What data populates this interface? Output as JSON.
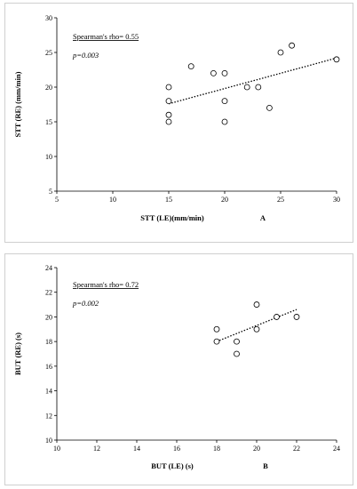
{
  "chart_data": [
    {
      "type": "scatter",
      "panel_letter": "A",
      "xlabel": "STT (LE)(mm/min)",
      "ylabel": "STT (RE) (mm/min)",
      "xlim": [
        5,
        30
      ],
      "ylim": [
        5,
        30
      ],
      "xticks": [
        5,
        10,
        15,
        20,
        25,
        30
      ],
      "yticks": [
        5,
        10,
        15,
        20,
        25,
        30
      ],
      "annotation_rho": "Spearman's rho= 0.55",
      "annotation_p": "p=0.003",
      "points": [
        {
          "x": 15,
          "y": 15
        },
        {
          "x": 15,
          "y": 16
        },
        {
          "x": 15,
          "y": 18
        },
        {
          "x": 15,
          "y": 20
        },
        {
          "x": 17,
          "y": 23
        },
        {
          "x": 19,
          "y": 22
        },
        {
          "x": 20,
          "y": 22
        },
        {
          "x": 20,
          "y": 18
        },
        {
          "x": 20,
          "y": 15
        },
        {
          "x": 22,
          "y": 20
        },
        {
          "x": 23,
          "y": 20
        },
        {
          "x": 24,
          "y": 17
        },
        {
          "x": 25,
          "y": 25
        },
        {
          "x": 26,
          "y": 26
        },
        {
          "x": 30,
          "y": 24
        }
      ],
      "trendline": {
        "x": [
          15,
          30
        ],
        "y": [
          17.6,
          24.2
        ]
      }
    },
    {
      "type": "scatter",
      "panel_letter": "B",
      "xlabel": "BUT (LE) (s)",
      "ylabel": "BUT (RE) (s)",
      "xlim": [
        10,
        24
      ],
      "ylim": [
        10,
        24
      ],
      "xticks": [
        10,
        12,
        14,
        16,
        18,
        20,
        22,
        24
      ],
      "yticks": [
        10,
        12,
        14,
        16,
        18,
        20,
        22,
        24
      ],
      "annotation_rho": "Spearman's rho= 0.72",
      "annotation_p": "p=0.002",
      "points": [
        {
          "x": 18,
          "y": 19
        },
        {
          "x": 18,
          "y": 18
        },
        {
          "x": 19,
          "y": 18
        },
        {
          "x": 19,
          "y": 17
        },
        {
          "x": 20,
          "y": 21
        },
        {
          "x": 20,
          "y": 19
        },
        {
          "x": 21,
          "y": 20
        },
        {
          "x": 22,
          "y": 20
        }
      ],
      "trendline": {
        "x": [
          18,
          22
        ],
        "y": [
          18.0,
          20.6
        ]
      }
    }
  ]
}
